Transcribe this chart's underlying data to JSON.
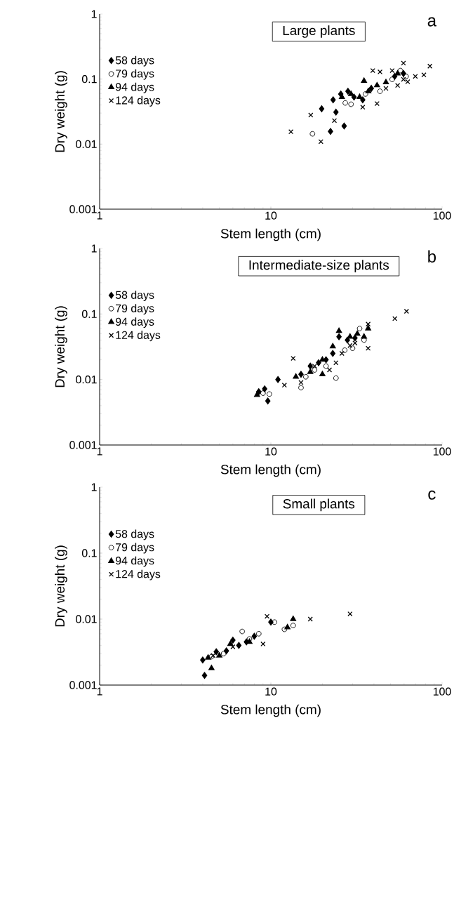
{
  "chart_data": [
    {
      "type": "scatter",
      "title": "Large plants",
      "annotations": [
        "a"
      ],
      "xlabel": "Stem length (cm)",
      "ylabel": "Dry weight (g)",
      "log": "xy",
      "xlim": [
        1,
        100
      ],
      "ylim": [
        0.001,
        1
      ],
      "xticks": [
        1,
        10,
        100
      ],
      "yticks": [
        0.001,
        0.01,
        0.1,
        1
      ],
      "legend": "top left",
      "series": [
        {
          "name": "58 days",
          "color": "#000000",
          "marker": "diamond",
          "x": [
            19.8,
            22.3,
            26.8,
            23.1,
            24,
            25.6,
            28.2,
            30.6,
            34.4,
            38.6,
            52.9,
            59.5
          ],
          "values": [
            0.035,
            0.0157,
            0.019,
            0.048,
            0.031,
            0.059,
            0.065,
            0.053,
            0.048,
            0.072,
            0.11,
            0.122
          ]
        },
        {
          "name": "79 days",
          "color": "#000000",
          "marker": "circle",
          "x": [
            17.5,
            27.2,
            29.4,
            35.7,
            43.4,
            51.1,
            57.1,
            61.6
          ],
          "values": [
            0.0144,
            0.043,
            0.041,
            0.059,
            0.065,
            0.099,
            0.135,
            0.11
          ]
        },
        {
          "name": "94 days",
          "color": "#000000",
          "marker": "triangle",
          "x": [
            35,
            33,
            37.1,
            41.7,
            47,
            55,
            29.4,
            26
          ],
          "values": [
            0.094,
            0.053,
            0.065,
            0.08,
            0.089,
            0.122,
            0.059,
            0.053
          ]
        },
        {
          "name": "124 days",
          "color": "#000000",
          "marker": "cross",
          "x": [
            13.1,
            17.1,
            19.6,
            23.5,
            39.4,
            43.4,
            41.7,
            34.4,
            51.1,
            59.5,
            63,
            69.8,
            78.3,
            84.9,
            47,
            55,
            59.5
          ],
          "values": [
            0.0155,
            0.028,
            0.0109,
            0.023,
            0.135,
            0.129,
            0.042,
            0.037,
            0.135,
            0.176,
            0.091,
            0.11,
            0.116,
            0.158,
            0.072,
            0.08,
            0.099
          ]
        }
      ]
    },
    {
      "type": "scatter",
      "title": "Intermediate-size plants",
      "annotations": [
        "b"
      ],
      "xlabel": "Stem length (cm)",
      "ylabel": "Dry weight (g)",
      "log": "xy",
      "xlim": [
        1,
        100
      ],
      "ylim": [
        0.001,
        1
      ],
      "xticks": [
        1,
        10,
        100
      ],
      "yticks": [
        0.001,
        0.01,
        0.1,
        1
      ],
      "legend": "top left",
      "series": [
        {
          "name": "58 days",
          "color": "#000000",
          "marker": "diamond",
          "x": [
            8.5,
            9.2,
            9.6,
            11,
            15,
            17,
            19,
            21,
            23,
            25,
            28,
            31
          ],
          "values": [
            0.0065,
            0.0072,
            0.0047,
            0.01,
            0.012,
            0.016,
            0.018,
            0.02,
            0.025,
            0.045,
            0.04,
            0.043
          ]
        },
        {
          "name": "79 days",
          "color": "#000000",
          "marker": "circle",
          "x": [
            9,
            9.8,
            15,
            16,
            18,
            21,
            24,
            27,
            30,
            33,
            35
          ],
          "values": [
            0.0062,
            0.006,
            0.0075,
            0.011,
            0.014,
            0.016,
            0.0105,
            0.028,
            0.03,
            0.06,
            0.04
          ]
        },
        {
          "name": "94 days",
          "color": "#000000",
          "marker": "triangle",
          "x": [
            8.3,
            14,
            17,
            20,
            20,
            23,
            25,
            29,
            32,
            35,
            37
          ],
          "values": [
            0.0058,
            0.011,
            0.013,
            0.012,
            0.02,
            0.032,
            0.055,
            0.045,
            0.05,
            0.045,
            0.06
          ]
        },
        {
          "name": "124 days",
          "color": "#000000",
          "marker": "cross",
          "x": [
            12,
            13.5,
            15,
            18,
            22,
            24,
            26,
            29,
            31,
            37,
            37,
            53,
            62
          ],
          "values": [
            0.0082,
            0.021,
            0.009,
            0.016,
            0.014,
            0.018,
            0.025,
            0.033,
            0.036,
            0.07,
            0.03,
            0.085,
            0.11
          ]
        }
      ]
    },
    {
      "type": "scatter",
      "title": "Small plants",
      "annotations": [
        "c"
      ],
      "xlabel": "Stem length (cm)",
      "ylabel": "Dry weight (g)",
      "log": "xy",
      "xlim": [
        1,
        100
      ],
      "ylim": [
        0.001,
        1
      ],
      "xticks": [
        1,
        10,
        100
      ],
      "yticks": [
        0.001,
        0.01,
        0.1,
        1
      ],
      "legend": "top left",
      "series": [
        {
          "name": "58 days",
          "color": "#000000",
          "marker": "diamond",
          "x": [
            4,
            4.1,
            4.8,
            5.5,
            6,
            6.5,
            7.2,
            8,
            10
          ],
          "values": [
            0.0024,
            0.0014,
            0.0032,
            0.0033,
            0.0048,
            0.004,
            0.0045,
            0.0055,
            0.009
          ]
        },
        {
          "name": "79 days",
          "color": "#000000",
          "marker": "circle",
          "x": [
            4.5,
            5.3,
            6.8,
            7.5,
            8.5,
            10.5,
            12,
            13.5
          ],
          "values": [
            0.0027,
            0.003,
            0.0065,
            0.005,
            0.006,
            0.009,
            0.007,
            0.008
          ]
        },
        {
          "name": "94 days",
          "color": "#000000",
          "marker": "triangle",
          "x": [
            4.3,
            4.5,
            5,
            5.8,
            7.5,
            12.5,
            13.5
          ],
          "values": [
            0.0026,
            0.0018,
            0.0028,
            0.0042,
            0.0045,
            0.0075,
            0.01
          ]
        },
        {
          "name": "124 days",
          "color": "#000000",
          "marker": "cross",
          "x": [
            4.6,
            6,
            9,
            9.5,
            17,
            29
          ],
          "values": [
            0.0028,
            0.0038,
            0.0042,
            0.011,
            0.01,
            0.012
          ]
        }
      ]
    }
  ]
}
